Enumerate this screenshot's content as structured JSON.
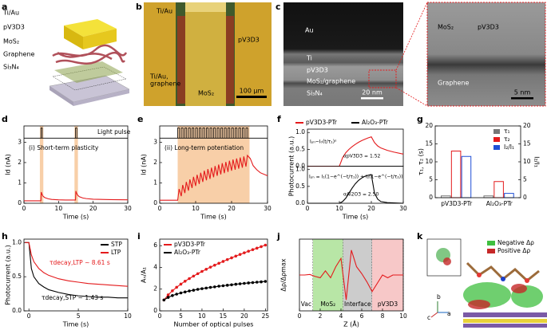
{
  "figure": {
    "panel_labels": [
      "a",
      "b",
      "c",
      "d",
      "e",
      "f",
      "g",
      "h",
      "i",
      "j",
      "k"
    ],
    "a": {
      "labels": [
        "Ti/Au",
        "pV3D3",
        "MoS₂",
        "Graphene",
        "Si₃N₄"
      ]
    },
    "b": {
      "labels": [
        "Ti/Au",
        "pV3D3",
        "Ti/Au,",
        "graphene",
        "MoS₂"
      ],
      "scale_bar": "100 μm"
    },
    "c": {
      "labels": [
        "Au",
        "Ti",
        "pV3D3",
        "MoS₂/graphene",
        "Si₃N₄"
      ],
      "scale_bar": "20 nm",
      "zoom_labels": [
        "MoS₂",
        "pV3D3",
        "Graphene"
      ],
      "zoom_scale_bar": "5 nm"
    },
    "k": {
      "legend": [
        "Negative Δρ",
        "Positive Δρ"
      ],
      "axes": [
        "a",
        "b",
        "c"
      ]
    }
  },
  "chart_data": [
    {
      "type": "line",
      "xlabel": "Time (s)",
      "ylabel": "Id (nA)",
      "xlim": [
        0,
        30
      ],
      "xticks": [
        0,
        10,
        20,
        30
      ],
      "ylim": [
        0,
        3.8
      ],
      "yticks": [
        0,
        1,
        2,
        3
      ],
      "x": [
        0,
        4.9,
        5,
        5.2,
        5.5,
        6,
        7,
        8,
        10,
        12,
        14.9,
        15,
        15.2,
        15.5,
        16,
        17,
        18,
        20,
        25,
        30
      ],
      "series": [
        {
          "color": "#e41a1c",
          "values": [
            0.12,
            0.12,
            0.55,
            0.45,
            0.35,
            0.28,
            0.22,
            0.19,
            0.17,
            0.16,
            0.16,
            0.6,
            0.5,
            0.4,
            0.32,
            0.26,
            0.23,
            0.2,
            0.18,
            0.17
          ]
        }
      ],
      "pulse_times": [
        4.9,
        14.9
      ],
      "pulse_width": 0.4,
      "pulse_levels": [
        3.2,
        3.7
      ],
      "pulse_color": "#000",
      "highlights": [
        [
          4.6,
          5.6
        ],
        [
          14.6,
          15.6
        ]
      ],
      "highlight_color": "#f8cfa8",
      "annotations": [
        "(i) Short-term plasticity",
        "Light pulse"
      ]
    },
    {
      "type": "line",
      "xlabel": "Time (s)",
      "ylabel": "Id (nA)",
      "xlim": [
        0,
        30
      ],
      "xticks": [
        0,
        10,
        20,
        30
      ],
      "ylim": [
        0,
        3.8
      ],
      "yticks": [
        0,
        1,
        2,
        3
      ],
      "x": [
        0,
        5,
        5.4,
        6,
        6.4,
        7,
        7.4,
        8,
        8.4,
        9,
        9.4,
        10,
        10.4,
        11,
        11.4,
        12,
        12.4,
        13,
        13.4,
        14,
        14.4,
        15,
        15.4,
        16,
        16.4,
        17,
        17.4,
        18,
        18.4,
        19,
        19.4,
        20,
        20.4,
        21,
        21.4,
        22,
        22.4,
        23,
        23.4,
        24,
        24.4,
        25.2,
        26,
        27,
        28,
        30
      ],
      "series": [
        {
          "color": "#e41a1c",
          "values": [
            0.15,
            0.15,
            0.7,
            0.35,
            0.9,
            0.5,
            1.05,
            0.62,
            1.17,
            0.75,
            1.3,
            0.85,
            1.4,
            0.95,
            1.5,
            1.05,
            1.6,
            1.13,
            1.68,
            1.2,
            1.75,
            1.28,
            1.83,
            1.35,
            1.9,
            1.42,
            1.97,
            1.48,
            2.03,
            1.54,
            2.09,
            1.6,
            2.15,
            1.65,
            2.2,
            1.7,
            2.25,
            1.75,
            2.3,
            1.8,
            2.35,
            2.2,
            1.85,
            1.65,
            1.5,
            1.35
          ]
        }
      ],
      "pulse_times": [
        5,
        6,
        7,
        8,
        9,
        10,
        11,
        12,
        13,
        14,
        15,
        16,
        17,
        18,
        19,
        20,
        21,
        22,
        23,
        24
      ],
      "pulse_width": 0.5,
      "pulse_levels": [
        3.2,
        3.7
      ],
      "pulse_color": "#000",
      "highlights": [
        [
          5,
          25
        ]
      ],
      "highlight_color": "#f8cfa8",
      "annotations": [
        "(ii) Long-term potentiation"
      ]
    },
    {
      "type": "line",
      "xlabel": "Time (s)",
      "ylabel": "Photocurrent (a.u.)",
      "xlim": [
        0,
        30
      ],
      "xticks": [
        0,
        10,
        20,
        30
      ],
      "legend": "top",
      "x": [
        0,
        9.9,
        10,
        11,
        12,
        13,
        14,
        15,
        16,
        17,
        18,
        19,
        20,
        21,
        22,
        23,
        25,
        27,
        30
      ],
      "series": [
        {
          "name": "pV3D3-PTr",
          "color": "#e41a1c",
          "ylim": [
            0,
            1.1
          ],
          "yticks": [
            {
              "value": 0,
              "label": "0.0"
            },
            {
              "value": 0.5,
              "label": "0.5"
            },
            {
              "value": 1,
              "label": "1.0"
            }
          ],
          "values": [
            0,
            0,
            0,
            0.25,
            0.4,
            0.5,
            0.58,
            0.65,
            0.71,
            0.76,
            0.8,
            0.84,
            0.87,
            0.7,
            0.6,
            0.54,
            0.47,
            0.42,
            0.36
          ]
        },
        {
          "name": "Al₂O₃-PTr",
          "color": "#000000",
          "ylim": [
            0,
            1.1
          ],
          "yticks": [
            {
              "value": 0,
              "label": "0.0"
            },
            {
              "value": 0.5,
              "label": "0.5"
            },
            {
              "value": 1,
              "label": "1.0"
            }
          ],
          "values": [
            0,
            0,
            0,
            0.05,
            0.15,
            0.3,
            0.45,
            0.58,
            0.68,
            0.75,
            0.8,
            0.83,
            0.85,
            0.3,
            0.12,
            0.05,
            0.02,
            0.01,
            0
          ]
        }
      ],
      "annotations": [
        "Iₚₕ~I₀(t/τ₁)ᵅ",
        "αpV3D3 = 1.52",
        "Iₚₕ = I₁(1−e^(−t/τ₁)) + I₂(1−e^(−t/τ₂))",
        "αAl2O3 = 2.50"
      ]
    },
    {
      "type": "bar",
      "ylabel": "τ₁, τ₂ (s)",
      "y2label": "I₂/I₁",
      "categories": [
        "pV3D3-PTr",
        "Al₂O₃-PTr"
      ],
      "ylim": [
        0,
        20
      ],
      "yticks": [
        0,
        5,
        10,
        15,
        20
      ],
      "y2lim": [
        0,
        20
      ],
      "y2ticks": [
        0,
        5,
        10,
        15,
        20
      ],
      "legend": "upper right",
      "series": [
        {
          "name": "τ₁",
          "color": "#777777",
          "values": [
            0.5,
            0.5
          ]
        },
        {
          "name": "τ₂",
          "color": "#e41a1c",
          "values": [
            13,
            4.5
          ]
        },
        {
          "name": "I₂/I₁",
          "color": "#1f4fd6",
          "values": [
            11.5,
            1.2
          ],
          "axis": "y2"
        }
      ]
    },
    {
      "type": "line",
      "xlabel": "Time (s)",
      "ylabel": "Photocurrent (a.u.)",
      "xlim": [
        -0.5,
        10
      ],
      "xticks": [
        0,
        5,
        10
      ],
      "ylim": [
        0,
        1.05
      ],
      "yticks": [
        {
          "value": 0,
          "label": "0.0"
        },
        {
          "value": 0.5,
          "label": "0.5"
        },
        {
          "value": 1,
          "label": "1.0"
        }
      ],
      "legend": "upper right",
      "x": [
        -0.4,
        0,
        0.25,
        0.5,
        1,
        1.5,
        2,
        3,
        4,
        5,
        6,
        7,
        8,
        9,
        10
      ],
      "series": [
        {
          "name": "STP",
          "color": "#000000",
          "values": [
            1,
            1,
            0.62,
            0.5,
            0.4,
            0.35,
            0.31,
            0.27,
            0.24,
            0.22,
            0.21,
            0.2,
            0.2,
            0.19,
            0.19
          ]
        },
        {
          "name": "LTP",
          "color": "#e41a1c",
          "values": [
            1,
            1,
            0.82,
            0.72,
            0.62,
            0.56,
            0.52,
            0.47,
            0.44,
            0.42,
            0.4,
            0.39,
            0.38,
            0.37,
            0.36
          ]
        }
      ],
      "annotations": [
        "τdecay,LTP ~ 8.61 s",
        "τdecay,STP ~ 1.43 s"
      ]
    },
    {
      "type": "line",
      "markers": true,
      "xlabel": "Number of optical pulses",
      "ylabel": "Aₙ/A₁",
      "xlim": [
        0,
        25.5
      ],
      "xticks": [
        0,
        5,
        10,
        15,
        20,
        25
      ],
      "ylim": [
        0,
        6.6
      ],
      "yticks": [
        0,
        2,
        4,
        6
      ],
      "legend": "upper left",
      "x": [
        1,
        2,
        3,
        4,
        5,
        6,
        7,
        8,
        9,
        10,
        11,
        12,
        13,
        14,
        15,
        16,
        17,
        18,
        19,
        20,
        21,
        22,
        23,
        24,
        25
      ],
      "series": [
        {
          "name": "pV3D3-PTr",
          "color": "#e41a1c",
          "values": [
            1,
            1.47,
            1.85,
            2.17,
            2.46,
            2.73,
            2.97,
            3.2,
            3.42,
            3.63,
            3.83,
            4.02,
            4.2,
            4.38,
            4.55,
            4.72,
            4.88,
            5.04,
            5.19,
            5.34,
            5.49,
            5.63,
            5.77,
            5.91,
            6.05
          ]
        },
        {
          "name": "Al₂O₃-PTr",
          "color": "#000000",
          "values": [
            1,
            1.24,
            1.41,
            1.54,
            1.65,
            1.74,
            1.83,
            1.9,
            1.98,
            2.04,
            2.1,
            2.16,
            2.21,
            2.27,
            2.31,
            2.36,
            2.4,
            2.45,
            2.49,
            2.53,
            2.57,
            2.6,
            2.64,
            2.67,
            2.71
          ]
        }
      ]
    },
    {
      "type": "line",
      "xlabel": "Z (Å)",
      "ylabel": "Δρ/Δρmax",
      "xlim": [
        0,
        10
      ],
      "xticks": [
        0,
        2,
        4,
        6,
        8,
        10
      ],
      "ylim": [
        -1.3,
        1.3
      ],
      "yticks": [],
      "regions": [
        {
          "label": "Vac",
          "range": [
            0,
            1.3
          ],
          "color": "#ffffff"
        },
        {
          "label": "MoS₂",
          "range": [
            1.3,
            4.2
          ],
          "color": "#b8e6a6"
        },
        {
          "label": "Interface",
          "range": [
            4.2,
            7
          ],
          "color": "#cccccc"
        },
        {
          "label": "pV3D3",
          "range": [
            7,
            10
          ],
          "color": "#f7c8c8"
        }
      ],
      "x": [
        0,
        0.5,
        1,
        1.5,
        2,
        2.5,
        3,
        3.5,
        4,
        4.5,
        5,
        5.5,
        6,
        6.5,
        7,
        7.5,
        8,
        8.5,
        9,
        9.5,
        10
      ],
      "series": [
        {
          "color": "#e41a1c",
          "values": [
            0,
            0,
            0.02,
            -0.05,
            -0.1,
            0.15,
            -0.1,
            0.3,
            0.6,
            -0.9,
            0.9,
            0.3,
            0.05,
            -0.25,
            -0.6,
            -0.3,
            0,
            -0.1,
            0,
            0,
            0
          ]
        }
      ]
    }
  ]
}
